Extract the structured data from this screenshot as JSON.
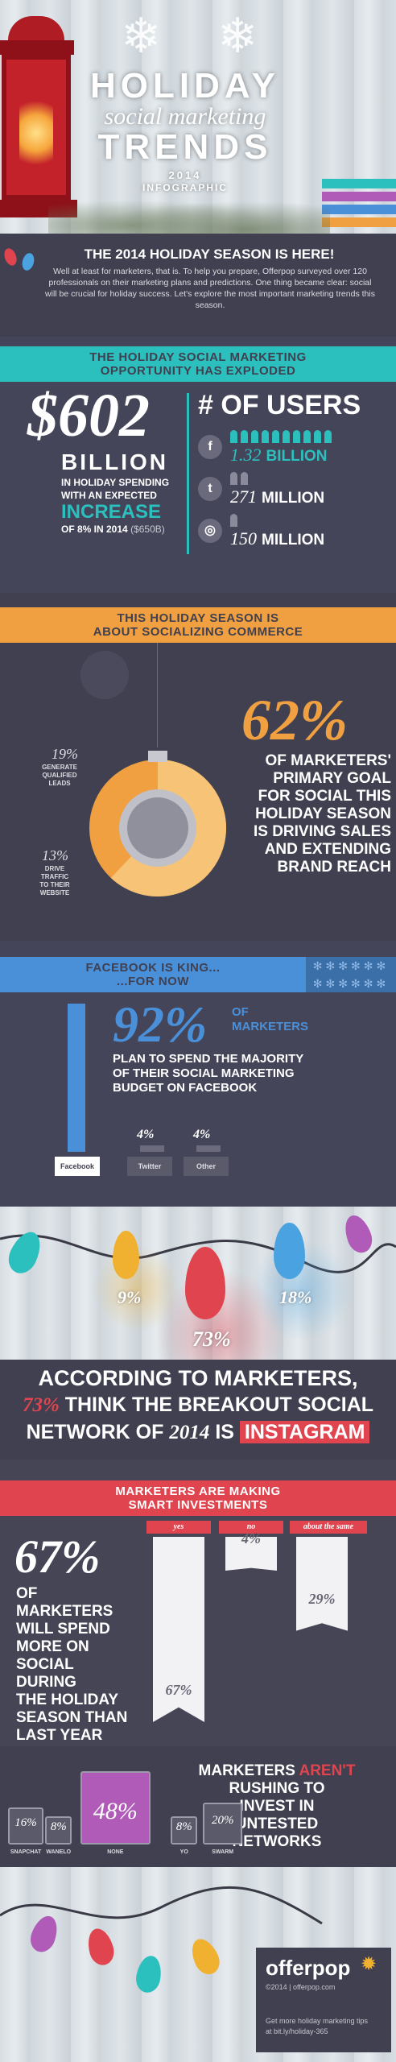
{
  "header": {
    "title_line1": "HOLIDAY",
    "title_line2": "social marketing",
    "title_line3": "TRENDS",
    "year": "2014",
    "subtitle": "INFOGRAPHIC"
  },
  "intro": {
    "heading": "THE 2014 HOLIDAY SEASON IS HERE!",
    "body": "Well at least for marketers, that is. To help you prepare, Offerpop surveyed over 120 professionals on their marketing plans and predictions. One thing became clear: social will be crucial for holiday success. Let's explore the most important marketing trends this season."
  },
  "section1": {
    "ribbon_line1": "THE HOLIDAY SOCIAL MARKETING",
    "ribbon_line2": "OPPORTUNITY HAS EXPLODED",
    "big_amount": "$602",
    "billion": "BILLION",
    "desc_line1": "IN HOLIDAY SPENDING",
    "desc_line2": "WITH AN EXPECTED",
    "increase": "INCREASE",
    "desc_line3": "OF 8% IN 2014",
    "desc_paren": "($650B)",
    "users_heading": "# OF USERS",
    "networks": [
      {
        "icon": "facebook-icon",
        "value": "1.32",
        "unit": "BILLION",
        "color": "#2bc0be",
        "figures": 10
      },
      {
        "icon": "twitter-icon",
        "value": "271",
        "unit": "MILLION",
        "color": "#ffffff",
        "figures": 2
      },
      {
        "icon": "instagram-icon",
        "value": "150",
        "unit": "MILLION",
        "color": "#ffffff",
        "figures": 1
      }
    ]
  },
  "section2": {
    "ribbon_line1": "THIS HOLIDAY SEASON IS",
    "ribbon_line2": "ABOUT SOCIALIZING COMMERCE",
    "pct": "62%",
    "statement": [
      "OF MARKETERS'",
      "PRIMARY GOAL",
      "FOR SOCIAL THIS",
      "HOLIDAY SEASON",
      "IS DRIVING SALES",
      "AND EXTENDING",
      "BRAND REACH"
    ],
    "leads_pct": "19%",
    "leads_label": [
      "GENERATE",
      "QUALIFIED",
      "LEADS"
    ],
    "traffic_pct": "13%",
    "traffic_label": [
      "DRIVE",
      "TRAFFIC",
      "TO THEIR",
      "WEBSITE"
    ],
    "donut_fraction": 0.62
  },
  "section3": {
    "ribbon_line1": "FACEBOOK IS KING...",
    "ribbon_line2": "...FOR NOW",
    "pct": "92%",
    "of": "OF",
    "marketers": "MARKETERS",
    "statement": [
      "PLAN TO SPEND THE MAJORITY",
      "OF THEIR SOCIAL MARKETING",
      "BUDGET ON FACEBOOK"
    ],
    "bars": [
      {
        "label": "Facebook",
        "value": 92,
        "value_label": ""
      },
      {
        "label": "Twitter",
        "value": 4,
        "value_label": "4%"
      },
      {
        "label": "Other",
        "value": 4,
        "value_label": "4%"
      }
    ]
  },
  "section4": {
    "bulbs": [
      {
        "label": "9%",
        "color": "#f0b030"
      },
      {
        "label": "73%",
        "color": "#e0454f"
      },
      {
        "label": "18%",
        "color": "#4aa3e0"
      }
    ],
    "statement_line1": "ACCORDING TO MARKETERS,",
    "pct": "73%",
    "statement_mid": "THINK THE BREAKOUT SOCIAL",
    "statement_line3a": "NETWORK OF",
    "year": "2014",
    "statement_line3b": "IS",
    "network": "INSTAGRAM"
  },
  "section5": {
    "ribbon_line1": "MARKETERS ARE MAKING",
    "ribbon_line2": "SMART INVESTMENTS",
    "pct": "67%",
    "statement": [
      "OF MARKETERS",
      "WILL SPEND",
      "MORE ON",
      "SOCIAL DURING",
      "THE HOLIDAY",
      "SEASON THAN",
      "LAST YEAR"
    ],
    "tags": [
      {
        "label": "yes",
        "value": 67,
        "value_label": "67%"
      },
      {
        "label": "no",
        "value": 4,
        "value_label": "4%"
      },
      {
        "label": "about the same",
        "value": 29,
        "value_label": "29%"
      }
    ]
  },
  "section6": {
    "title_line1": "MARKETERS",
    "title_emph": "AREN'T",
    "title_line2": "RUSHING TO",
    "title_line3": "INVEST IN",
    "title_line4": "UNTESTED",
    "title_line5": "NETWORKS",
    "bags": [
      {
        "label": "SNAPCHAT",
        "value": 16,
        "value_label": "16%"
      },
      {
        "label": "WANELO",
        "value": 8,
        "value_label": "8%"
      },
      {
        "label": "NONE",
        "value": 48,
        "value_label": "48%"
      },
      {
        "label": "YO",
        "value": 8,
        "value_label": "8%"
      },
      {
        "label": "SWARM",
        "value": 20,
        "value_label": "20%"
      }
    ]
  },
  "footer": {
    "brand": "offerpop",
    "copyright": "©2014 | offerpop.com",
    "tip_line1": "Get more holiday marketing tips",
    "tip_line2": "at bit.ly/holiday-365"
  },
  "colors": {
    "teal": "#2bc0be",
    "orange": "#f0a040",
    "blue": "#4a90d9",
    "red": "#e0454f",
    "dark": "#404050"
  }
}
